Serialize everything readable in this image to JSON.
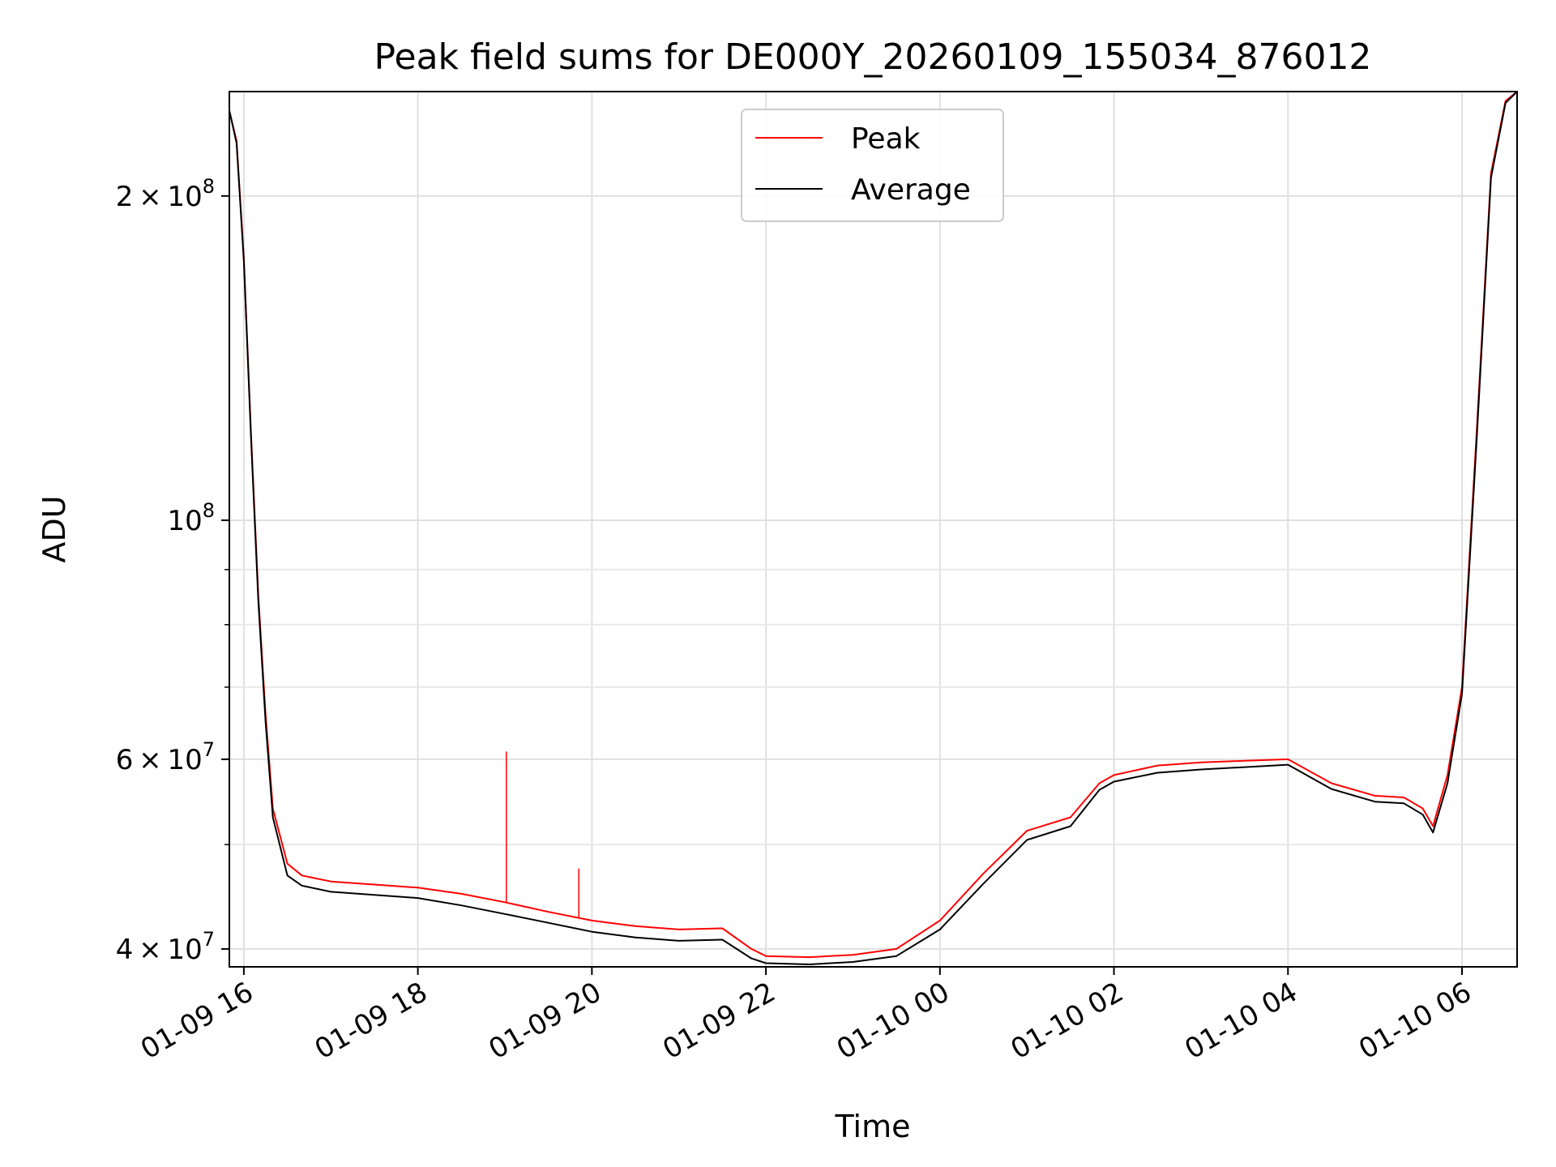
{
  "chart_data": {
    "type": "line",
    "title": "Peak field sums for DE000Y_20260109_155034_876012",
    "xlabel": "Time",
    "ylabel": "ADU",
    "y_scale": "log",
    "grid": true,
    "legend_position": "top-center",
    "xlim": [
      "01-09 15:50",
      "01-10 06:38"
    ],
    "ylim": [
      38500000,
      250000000
    ],
    "x_ticks": [
      "01-09 16",
      "01-09 18",
      "01-09 20",
      "01-09 22",
      "01-10 00",
      "01-10 02",
      "01-10 04",
      "01-10 06"
    ],
    "y_ticks": [
      {
        "value": 40000000,
        "mantissa": "4",
        "exponent": "7"
      },
      {
        "value": 60000000,
        "mantissa": "6",
        "exponent": "7"
      },
      {
        "value": 100000000,
        "mantissa": "",
        "exponent": "8"
      },
      {
        "value": 200000000,
        "mantissa": "2",
        "exponent": "8"
      }
    ],
    "series": [
      {
        "name": "Peak",
        "color": "#ff0000",
        "x": [
          "01-09 15:50",
          "01-09 15:55",
          "01-09 16:00",
          "01-09 16:05",
          "01-09 16:10",
          "01-09 16:15",
          "01-09 16:20",
          "01-09 16:30",
          "01-09 16:40",
          "01-09 17:00",
          "01-09 17:30",
          "01-09 18:00",
          "01-09 18:30",
          "01-09 19:00",
          "01-09 19:30",
          "01-09 20:00",
          "01-09 20:30",
          "01-09 21:00",
          "01-09 21:30",
          "01-09 21:50",
          "01-09 22:00",
          "01-09 22:30",
          "01-09 23:00",
          "01-09 23:30",
          "01-10 00:00",
          "01-10 00:30",
          "01-10 01:00",
          "01-10 01:30",
          "01-10 01:50",
          "01-10 02:00",
          "01-10 02:30",
          "01-10 03:00",
          "01-10 03:30",
          "01-10 04:00",
          "01-10 04:30",
          "01-10 05:00",
          "01-10 05:20",
          "01-10 05:33",
          "01-10 05:40",
          "01-10 05:50",
          "01-10 06:00",
          "01-10 06:10",
          "01-10 06:20",
          "01-10 06:30",
          "01-10 06:38"
        ],
        "values": [
          240000000,
          225000000,
          175000000,
          120000000,
          85000000,
          66000000,
          54000000,
          48000000,
          46800000,
          46200000,
          45900000,
          45600000,
          45000000,
          44200000,
          43300000,
          42500000,
          42000000,
          41700000,
          41800000,
          40000000,
          39400000,
          39300000,
          39500000,
          40000000,
          42500000,
          47000000,
          51500000,
          53000000,
          57000000,
          58000000,
          59200000,
          59600000,
          59800000,
          60000000,
          57000000,
          55500000,
          55300000,
          54000000,
          52000000,
          58000000,
          70000000,
          120000000,
          210000000,
          245000000,
          250000000
        ],
        "spikes": [
          {
            "x": "01-09 19:01",
            "value": 61000000
          },
          {
            "x": "01-09 19:51",
            "value": 47500000
          }
        ]
      },
      {
        "name": "Average",
        "color": "#000000",
        "x": [
          "01-09 15:50",
          "01-09 15:55",
          "01-09 16:00",
          "01-09 16:05",
          "01-09 16:10",
          "01-09 16:15",
          "01-09 16:20",
          "01-09 16:30",
          "01-09 16:40",
          "01-09 17:00",
          "01-09 17:30",
          "01-09 18:00",
          "01-09 18:30",
          "01-09 19:00",
          "01-09 19:30",
          "01-09 20:00",
          "01-09 20:30",
          "01-09 21:00",
          "01-09 21:30",
          "01-09 21:50",
          "01-09 22:00",
          "01-09 22:30",
          "01-09 23:00",
          "01-09 23:30",
          "01-10 00:00",
          "01-10 00:30",
          "01-10 01:00",
          "01-10 01:30",
          "01-10 01:50",
          "01-10 02:00",
          "01-10 02:30",
          "01-10 03:00",
          "01-10 03:30",
          "01-10 04:00",
          "01-10 04:30",
          "01-10 05:00",
          "01-10 05:20",
          "01-10 05:33",
          "01-10 05:40",
          "01-10 05:50",
          "01-10 06:00",
          "01-10 06:10",
          "01-10 06:20",
          "01-10 06:30",
          "01-10 06:38"
        ],
        "values": [
          240000000,
          224000000,
          174000000,
          119000000,
          84000000,
          65000000,
          53000000,
          46800000,
          45800000,
          45200000,
          44900000,
          44600000,
          43900000,
          43100000,
          42300000,
          41500000,
          41000000,
          40700000,
          40800000,
          39200000,
          38800000,
          38700000,
          38900000,
          39400000,
          41700000,
          46000000,
          50500000,
          52000000,
          56200000,
          57200000,
          58300000,
          58700000,
          59000000,
          59300000,
          56300000,
          54800000,
          54600000,
          53300000,
          51300000,
          57000000,
          69000000,
          118000000,
          208000000,
          244000000,
          250000000
        ]
      }
    ]
  }
}
